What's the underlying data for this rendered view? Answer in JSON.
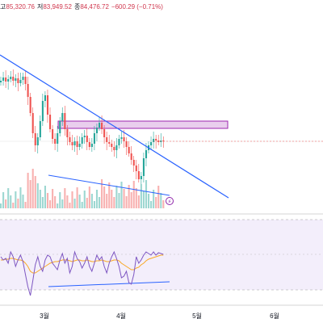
{
  "legend": {
    "high_label": "고",
    "high_value": "85,320.76",
    "low_label": "저",
    "low_value": "83,949.52",
    "close_label": "종",
    "close_value": "84,476.72",
    "change": "−600.29 (−0.71%)"
  },
  "x_axis": {
    "labels": [
      "3월",
      "4월",
      "5월",
      "6월"
    ]
  },
  "alert_icon": "lightning-icon",
  "colors": {
    "up": "#26a69a",
    "down": "#ef5350",
    "trendline": "#2962ff",
    "zone_fill": "#e1bee7",
    "zone_border": "#9c27b0",
    "rsi_line": "#7e57c2",
    "rsi_ma": "#f9a825",
    "rsi_band": "#ede7f6"
  }
}
